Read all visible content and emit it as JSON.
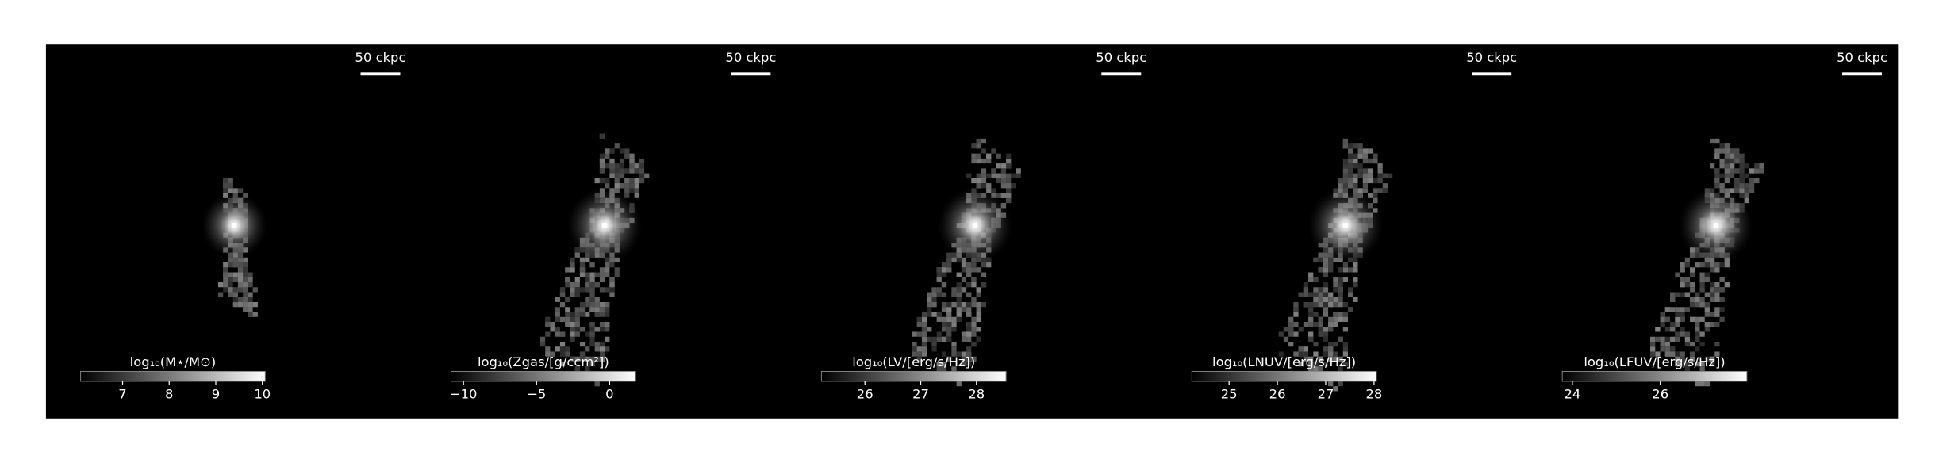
{
  "panels": [
    {
      "scalebar": "50 ckpc",
      "colorbar_label": "log₁₀(M⋆/M⊙)",
      "colorbar_lim": [
        6.1,
        10.06
      ],
      "colorbar_ticks": [
        7,
        8,
        9,
        10
      ]
    },
    {
      "scalebar": "50 ckpc",
      "colorbar_label": "log₁₀(Zgas/[g/ccm²])",
      "colorbar_lim": [
        -10.85,
        1.78
      ],
      "colorbar_ticks": [
        {
          "value": -10,
          "label": "−10"
        },
        {
          "value": -5,
          "label": "−5"
        },
        0
      ]
    },
    {
      "scalebar": "50 ckpc",
      "colorbar_label": "log₁₀(LV/[erg/s/Hz])",
      "colorbar_lim": [
        25.22,
        28.53
      ],
      "colorbar_ticks": [
        26,
        27,
        28
      ]
    },
    {
      "scalebar": "50 ckpc",
      "colorbar_label": "log₁₀(LNUV/[erg/s/Hz])",
      "colorbar_lim": [
        24.23,
        28.05
      ],
      "colorbar_ticks": [
        25,
        26,
        27,
        28
      ]
    },
    {
      "scalebar": "50 ckpc",
      "colorbar_label": "log₁₀(LFUV/[erg/s/Hz])",
      "colorbar_lim": [
        23.77,
        27.97
      ],
      "colorbar_ticks": [
        24,
        26
      ]
    }
  ]
}
